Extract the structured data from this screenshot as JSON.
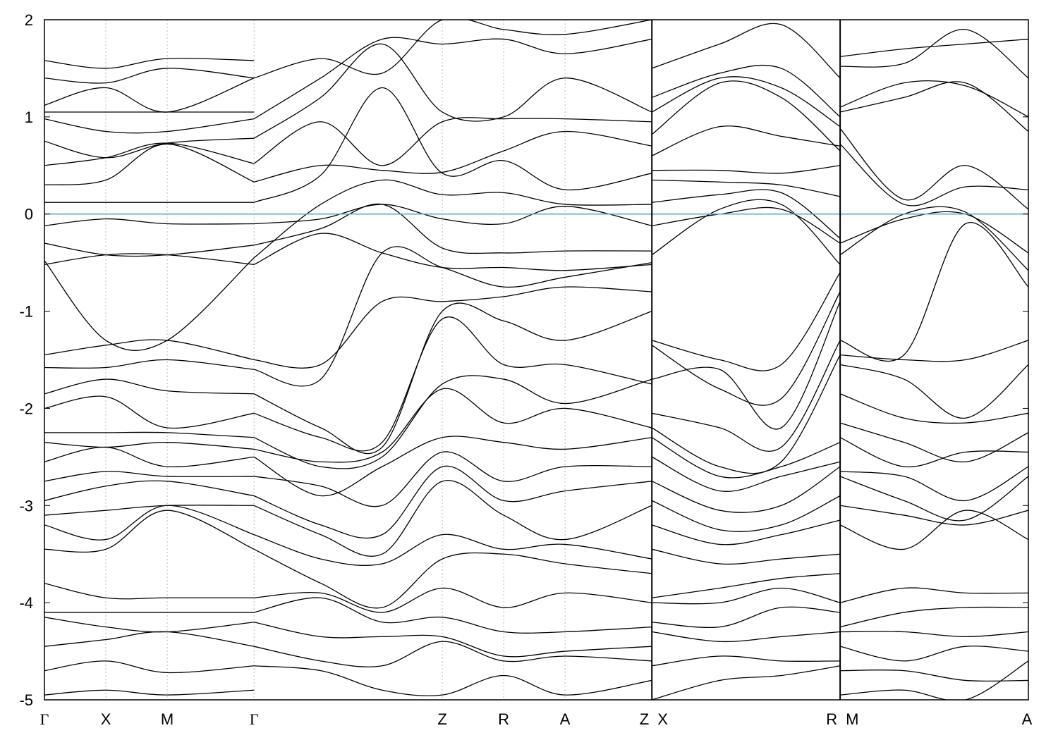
{
  "chart_data": {
    "type": "line",
    "title": "",
    "xlabel": "",
    "ylabel": "",
    "ylim": [
      -5,
      2
    ],
    "yticks": [
      "2",
      "1",
      "0",
      "-1",
      "-2",
      "-3",
      "-4",
      "-5"
    ],
    "ytick_values": [
      2,
      1,
      0,
      -1,
      -2,
      -3,
      -4,
      -5
    ],
    "kpath": [
      {
        "label": "Γ",
        "x": 0.0
      },
      {
        "label": "X",
        "x": 1.0
      },
      {
        "label": "M",
        "x": 2.0
      },
      {
        "label": "Γ",
        "x": 3.414
      },
      {
        "label": "Z",
        "x": 6.48
      },
      {
        "label": "R",
        "x": 7.48
      },
      {
        "label": "A",
        "x": 8.48
      },
      {
        "label": "Z",
        "x": 9.894
      },
      {
        "label": "X",
        "x": 9.894
      },
      {
        "label": "R",
        "x": 12.96
      },
      {
        "label": "M",
        "x": 12.96
      },
      {
        "label": "A",
        "x": 16.026
      }
    ],
    "segment_breaks": [
      9.894,
      12.96
    ],
    "xlim": [
      0,
      16.026
    ],
    "fermi_level": 0,
    "grid": "vertical dotted at high-symmetry points",
    "colors": {
      "bands": "#000000",
      "fermi": "#5aaec8",
      "grid": "#bbbbbb",
      "frame": "#000000"
    },
    "series_groups": [
      {
        "x": [
          0,
          1,
          2,
          3.414
        ],
        "bands": [
          [
            -0.12,
            -0.05,
            -0.1,
            -0.1
          ],
          [
            -0.3,
            -0.42,
            -0.42,
            -0.32
          ],
          [
            -0.48,
            -1.3,
            -1.3,
            -0.45
          ],
          [
            -0.52,
            -0.42,
            -0.42,
            -0.52
          ],
          [
            0.12,
            0.12,
            0.12,
            0.12
          ],
          [
            0.3,
            0.35,
            0.72,
            0.33
          ],
          [
            0.5,
            0.58,
            0.73,
            0.52
          ],
          [
            0.75,
            0.58,
            0.73,
            0.78
          ],
          [
            0.98,
            0.85,
            0.85,
            0.98
          ],
          [
            1.05,
            1.05,
            1.05,
            1.05
          ],
          [
            1.12,
            1.3,
            1.05,
            1.4
          ],
          [
            1.4,
            1.35,
            1.5,
            1.4
          ],
          [
            1.58,
            1.5,
            1.6,
            1.58
          ],
          [
            -1.45,
            -1.35,
            -1.3,
            -1.5
          ],
          [
            -1.58,
            -1.58,
            -1.5,
            -1.6
          ],
          [
            -1.85,
            -1.7,
            -1.82,
            -1.85
          ],
          [
            -2.0,
            -1.88,
            -2.2,
            -2.05
          ],
          [
            -2.25,
            -2.25,
            -2.25,
            -2.3
          ],
          [
            -2.35,
            -2.4,
            -2.35,
            -2.42
          ],
          [
            -2.55,
            -2.4,
            -2.6,
            -2.5
          ],
          [
            -2.75,
            -2.65,
            -2.7,
            -2.7
          ],
          [
            -2.95,
            -2.8,
            -2.75,
            -2.9
          ],
          [
            -3.1,
            -3.05,
            -3.0,
            -3.0
          ],
          [
            -3.2,
            -3.35,
            -3.0,
            -3.3
          ],
          [
            -3.45,
            -3.45,
            -3.05,
            -3.45
          ],
          [
            -3.8,
            -3.95,
            -3.95,
            -3.95
          ],
          [
            -4.1,
            -4.1,
            -4.1,
            -4.1
          ],
          [
            -4.15,
            -4.25,
            -4.3,
            -4.2
          ],
          [
            -4.45,
            -4.38,
            -4.3,
            -4.45
          ],
          [
            -4.7,
            -4.6,
            -4.72,
            -4.65
          ],
          [
            -4.95,
            -4.9,
            -4.95,
            -4.9
          ]
        ]
      },
      {
        "x": [
          3.414,
          4.5,
          5.5,
          6.48,
          7.48,
          8.48,
          9.894
        ],
        "bands": [
          [
            -0.1,
            -0.05,
            0.1,
            -0.05,
            -0.1,
            0.08,
            -0.12
          ],
          [
            -0.32,
            -0.15,
            0.1,
            -0.35,
            -0.4,
            -0.38,
            -0.38
          ],
          [
            -0.45,
            0.1,
            0.35,
            0.2,
            0.22,
            0.1,
            0.1
          ],
          [
            -0.52,
            -0.2,
            -0.4,
            -0.55,
            -0.55,
            -0.58,
            -0.52
          ],
          [
            0.12,
            0.4,
            1.3,
            0.42,
            0.55,
            0.25,
            0.42
          ],
          [
            0.33,
            0.5,
            0.45,
            0.43,
            0.65,
            0.85,
            0.7
          ],
          [
            0.52,
            0.95,
            0.5,
            0.95,
            0.98,
            0.98,
            0.95
          ],
          [
            0.78,
            1.2,
            1.75,
            1.05,
            1.0,
            1.4,
            1.05
          ],
          [
            0.98,
            1.4,
            1.8,
            1.75,
            1.8,
            1.65,
            1.8
          ],
          [
            1.4,
            1.6,
            1.45,
            2.0,
            1.9,
            1.85,
            2.0
          ],
          [
            -1.5,
            -1.55,
            -0.9,
            -0.9,
            -0.85,
            -0.75,
            -0.8
          ],
          [
            -1.6,
            -1.7,
            -0.4,
            -0.55,
            -0.75,
            -0.65,
            -0.5
          ],
          [
            -1.85,
            -2.2,
            -2.4,
            -1.0,
            -1.1,
            -1.3,
            -1.0
          ],
          [
            -2.05,
            -2.3,
            -2.35,
            -1.08,
            -1.55,
            -1.55,
            -1.75
          ],
          [
            -2.3,
            -2.6,
            -2.5,
            -1.75,
            -1.7,
            -1.95,
            -1.7
          ],
          [
            -2.42,
            -2.55,
            -2.45,
            -1.8,
            -2.15,
            -2.0,
            -2.2
          ],
          [
            -2.5,
            -2.9,
            -2.6,
            -2.3,
            -2.35,
            -2.42,
            -2.3
          ],
          [
            -2.7,
            -2.8,
            -3.0,
            -2.45,
            -2.75,
            -2.6,
            -2.6
          ],
          [
            -2.9,
            -3.2,
            -3.3,
            -2.6,
            -2.95,
            -2.85,
            -2.75
          ],
          [
            -3.0,
            -3.3,
            -3.5,
            -2.75,
            -3.1,
            -3.35,
            -3.0
          ],
          [
            -3.3,
            -3.55,
            -3.6,
            -3.3,
            -3.45,
            -3.4,
            -3.55
          ],
          [
            -3.45,
            -3.8,
            -4.05,
            -3.55,
            -3.5,
            -3.6,
            -3.7
          ],
          [
            -3.95,
            -3.9,
            -4.1,
            -3.85,
            -4.05,
            -3.9,
            -4.0
          ],
          [
            -4.1,
            -3.95,
            -4.2,
            -4.15,
            -4.3,
            -4.3,
            -4.25
          ],
          [
            -4.2,
            -4.35,
            -4.35,
            -4.35,
            -4.55,
            -4.5,
            -4.45
          ],
          [
            -4.45,
            -4.6,
            -4.65,
            -4.4,
            -4.6,
            -4.55,
            -4.6
          ],
          [
            -4.65,
            -4.7,
            -4.9,
            -4.95,
            -4.75,
            -4.95,
            -4.8
          ]
        ]
      },
      {
        "x": [
          9.894,
          11.0,
          12.0,
          12.96
        ],
        "bands": [
          [
            -0.42,
            0.05,
            0.1,
            -0.52
          ],
          [
            -0.12,
            0.0,
            0.05,
            -0.3
          ],
          [
            0.12,
            0.2,
            0.22,
            -0.25
          ],
          [
            0.35,
            0.33,
            0.3,
            0.18
          ],
          [
            0.45,
            0.45,
            0.42,
            0.5
          ],
          [
            0.6,
            0.9,
            0.8,
            0.7
          ],
          [
            0.82,
            1.35,
            1.2,
            0.65
          ],
          [
            1.05,
            1.4,
            1.3,
            0.9
          ],
          [
            1.2,
            1.45,
            1.5,
            1.0
          ],
          [
            1.5,
            1.75,
            1.95,
            1.4
          ],
          [
            -1.3,
            -1.5,
            -1.55,
            -0.6
          ],
          [
            -1.35,
            -1.8,
            -1.9,
            -0.8
          ],
          [
            -1.7,
            -1.6,
            -2.2,
            -0.9
          ],
          [
            -2.05,
            -2.2,
            -2.4,
            -1.3
          ],
          [
            -2.2,
            -2.6,
            -2.55,
            -1.45
          ],
          [
            -2.3,
            -2.7,
            -2.6,
            -2.35
          ],
          [
            -2.5,
            -2.85,
            -2.7,
            -2.55
          ],
          [
            -2.75,
            -3.05,
            -3.0,
            -2.6
          ],
          [
            -2.95,
            -3.25,
            -3.2,
            -2.9
          ],
          [
            -3.2,
            -3.4,
            -3.3,
            -3.15
          ],
          [
            -3.45,
            -3.6,
            -3.55,
            -3.5
          ],
          [
            -3.95,
            -3.85,
            -3.75,
            -3.7
          ],
          [
            -4.0,
            -4.0,
            -3.85,
            -4.0
          ],
          [
            -4.2,
            -4.25,
            -4.05,
            -4.1
          ],
          [
            -4.3,
            -4.4,
            -4.35,
            -4.3
          ],
          [
            -4.65,
            -4.55,
            -4.6,
            -4.6
          ],
          [
            -5.0,
            -4.8,
            -4.75,
            -4.65
          ]
        ]
      },
      {
        "x": [
          12.96,
          14.0,
          15.0,
          16.026
        ],
        "bands": [
          [
            -0.42,
            0.0,
            0.02,
            -0.58
          ],
          [
            -0.3,
            -0.05,
            0.0,
            -0.4
          ],
          [
            0.72,
            0.1,
            0.28,
            0.25
          ],
          [
            0.88,
            0.15,
            0.5,
            0.05
          ],
          [
            1.05,
            1.2,
            1.35,
            0.85
          ],
          [
            1.1,
            1.35,
            1.32,
            1.0
          ],
          [
            1.52,
            1.55,
            1.9,
            1.4
          ],
          [
            1.62,
            1.7,
            1.75,
            1.8
          ],
          [
            -1.3,
            -1.45,
            -0.1,
            -0.75
          ],
          [
            -1.45,
            -1.5,
            -1.5,
            -1.3
          ],
          [
            -1.55,
            -1.7,
            -2.1,
            -1.55
          ],
          [
            -1.85,
            -2.1,
            -2.15,
            -2.05
          ],
          [
            -2.15,
            -2.35,
            -2.55,
            -2.25
          ],
          [
            -2.3,
            -2.6,
            -2.45,
            -2.45
          ],
          [
            -2.65,
            -2.7,
            -2.95,
            -2.6
          ],
          [
            -2.7,
            -2.95,
            -3.15,
            -2.7
          ],
          [
            -3.0,
            -3.1,
            -3.2,
            -3.05
          ],
          [
            -3.2,
            -3.45,
            -3.05,
            -3.35
          ],
          [
            -4.0,
            -3.85,
            -3.9,
            -3.9
          ],
          [
            -4.25,
            -4.1,
            -4.05,
            -4.05
          ],
          [
            -4.3,
            -4.3,
            -4.35,
            -4.3
          ],
          [
            -4.45,
            -4.6,
            -4.45,
            -4.5
          ],
          [
            -4.7,
            -4.7,
            -4.8,
            -4.8
          ],
          [
            -4.95,
            -4.9,
            -5.0,
            -4.6
          ]
        ]
      }
    ]
  }
}
